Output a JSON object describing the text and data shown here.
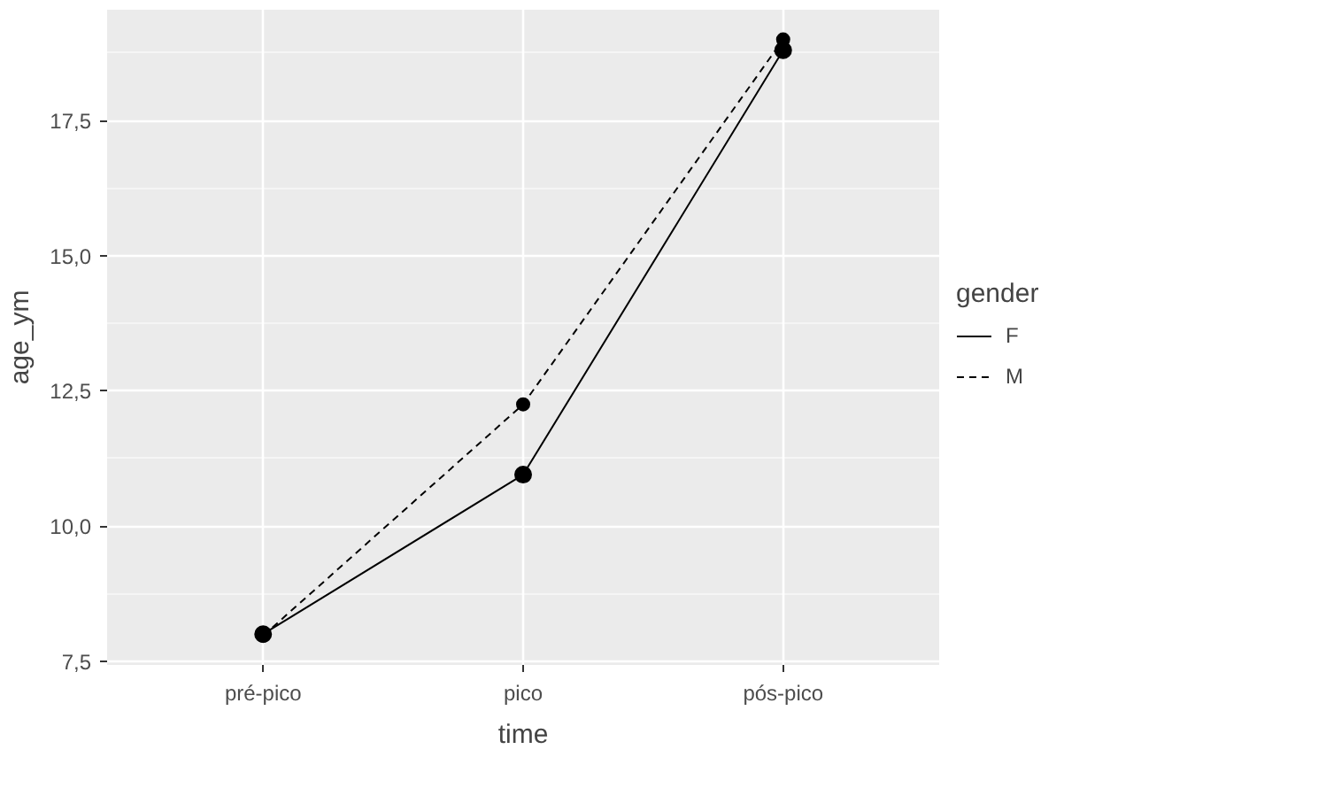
{
  "chart_data": {
    "type": "line",
    "xlabel": "time",
    "ylabel": "age_ym",
    "legend_title": "gender",
    "categories": [
      "pré-pico",
      "pico",
      "pós-pico"
    ],
    "series": [
      {
        "name": "F",
        "color": "#000000",
        "values": [
          8.0,
          10.95,
          18.8
        ],
        "line_style": "solid"
      },
      {
        "name": "M",
        "color": "#000000",
        "values": [
          7.97,
          12.25,
          19.0
        ],
        "line_style": "dashed"
      }
    ],
    "ylim": [
      7.43,
      19.55
    ],
    "yticks": [
      {
        "value": 7.5,
        "label": "7,5"
      },
      {
        "value": 10.0,
        "label": "10,0"
      },
      {
        "value": 12.5,
        "label": "12,5"
      },
      {
        "value": 15.0,
        "label": "15,0"
      },
      {
        "value": 17.5,
        "label": "17,5"
      }
    ],
    "marker": "circle",
    "grid": true,
    "legend": "right"
  }
}
